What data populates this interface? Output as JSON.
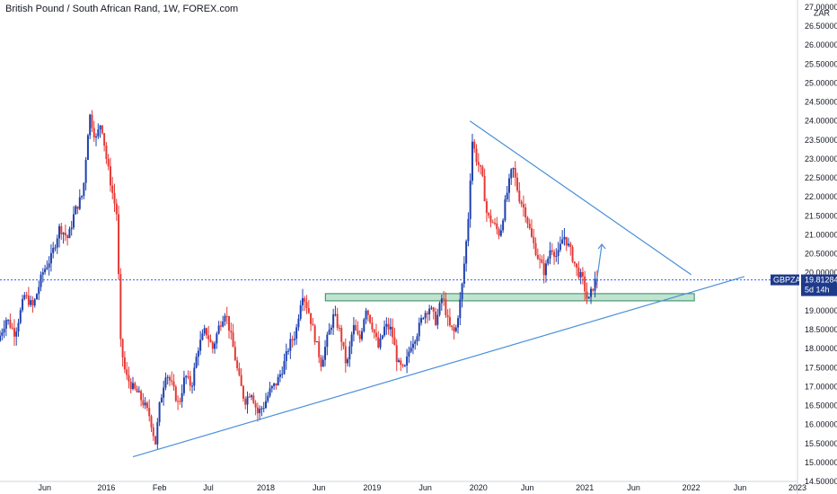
{
  "header": {
    "title": "British Pound / South African Rand, 1W, FOREX.com"
  },
  "chart_data": {
    "type": "candlestick",
    "symbol": "GBPZAR",
    "currency_label": "ZAR",
    "last_price": "19.81284",
    "countdown": "5d 14h",
    "ylim": [
      14.5,
      27.0
    ],
    "y_ticks": [
      "14.50000",
      "15.00000",
      "15.50000",
      "16.00000",
      "16.50000",
      "17.00000",
      "17.50000",
      "18.00000",
      "18.50000",
      "19.00000",
      "19.50000",
      "20.00000",
      "20.50000",
      "21.00000",
      "21.50000",
      "22.00000",
      "22.50000",
      "23.00000",
      "23.50000",
      "24.00000",
      "24.50000",
      "25.00000",
      "25.50000",
      "26.00000",
      "26.50000",
      "27.00000"
    ],
    "x_ticks": [
      {
        "label": "Jun",
        "t": 2015.42
      },
      {
        "label": "2016",
        "t": 2016.0
      },
      {
        "label": "Feb",
        "t": 2016.5
      },
      {
        "label": "Jul",
        "t": 2016.96
      },
      {
        "label": "2018",
        "t": 2017.5
      },
      {
        "label": "Jun",
        "t": 2018.0
      },
      {
        "label": "2019",
        "t": 2018.5
      },
      {
        "label": "Jun",
        "t": 2019.0
      },
      {
        "label": "2020",
        "t": 2019.5
      },
      {
        "label": "Jun",
        "t": 2019.96
      },
      {
        "label": "2021",
        "t": 2020.5
      },
      {
        "label": "Jun",
        "t": 2020.96
      },
      {
        "label": "2022",
        "t": 2021.5
      },
      {
        "label": "Jun",
        "t": 2021.96
      },
      {
        "label": "2023",
        "t": 2022.5
      }
    ],
    "xlim": [
      2015.0,
      2022.5
    ],
    "price_path": [
      [
        2015.0,
        18.2
      ],
      [
        2015.08,
        18.8
      ],
      [
        2015.16,
        18.4
      ],
      [
        2015.25,
        19.4
      ],
      [
        2015.33,
        19.1
      ],
      [
        2015.42,
        20.0
      ],
      [
        2015.5,
        20.4
      ],
      [
        2015.58,
        21.2
      ],
      [
        2015.66,
        20.9
      ],
      [
        2015.72,
        21.6
      ],
      [
        2015.8,
        22.1
      ],
      [
        2015.86,
        24.2
      ],
      [
        2015.92,
        23.5
      ],
      [
        2015.97,
        24.0
      ],
      [
        2016.02,
        23.0
      ],
      [
        2016.07,
        22.2
      ],
      [
        2016.12,
        21.5
      ],
      [
        2016.15,
        18.2
      ],
      [
        2016.2,
        17.3
      ],
      [
        2016.26,
        17.0
      ],
      [
        2016.32,
        16.8
      ],
      [
        2016.38,
        16.5
      ],
      [
        2016.43,
        16.2
      ],
      [
        2016.48,
        15.5
      ],
      [
        2016.52,
        16.5
      ],
      [
        2016.58,
        17.4
      ],
      [
        2016.64,
        17.0
      ],
      [
        2016.7,
        16.5
      ],
      [
        2016.76,
        17.3
      ],
      [
        2016.82,
        17.0
      ],
      [
        2016.88,
        18.0
      ],
      [
        2016.95,
        18.5
      ],
      [
        2017.02,
        18.0
      ],
      [
        2017.08,
        18.6
      ],
      [
        2017.14,
        19.0
      ],
      [
        2017.2,
        18.2
      ],
      [
        2017.26,
        17.3
      ],
      [
        2017.32,
        16.6
      ],
      [
        2017.38,
        16.9
      ],
      [
        2017.44,
        16.3
      ],
      [
        2017.5,
        16.5
      ],
      [
        2017.56,
        16.9
      ],
      [
        2017.62,
        17.1
      ],
      [
        2017.68,
        17.5
      ],
      [
        2017.74,
        18.1
      ],
      [
        2017.8,
        18.4
      ],
      [
        2017.86,
        19.5
      ],
      [
        2017.92,
        19.0
      ],
      [
        2017.98,
        18.3
      ],
      [
        2018.04,
        17.6
      ],
      [
        2018.1,
        18.3
      ],
      [
        2018.16,
        18.9
      ],
      [
        2018.22,
        18.4
      ],
      [
        2018.28,
        17.5
      ],
      [
        2018.34,
        18.6
      ],
      [
        2018.4,
        18.2
      ],
      [
        2018.46,
        19.1
      ],
      [
        2018.52,
        18.6
      ],
      [
        2018.58,
        18.0
      ],
      [
        2018.64,
        18.6
      ],
      [
        2018.7,
        18.5
      ],
      [
        2018.76,
        17.6
      ],
      [
        2018.82,
        17.4
      ],
      [
        2018.88,
        18.1
      ],
      [
        2018.94,
        18.4
      ],
      [
        2019.0,
        18.9
      ],
      [
        2019.06,
        19.1
      ],
      [
        2019.12,
        18.7
      ],
      [
        2019.18,
        19.4
      ],
      [
        2019.24,
        18.6
      ],
      [
        2019.3,
        18.4
      ],
      [
        2019.36,
        19.5
      ],
      [
        2019.42,
        21.3
      ],
      [
        2019.46,
        23.5
      ],
      [
        2019.5,
        23.0
      ],
      [
        2019.55,
        22.6
      ],
      [
        2019.6,
        21.5
      ],
      [
        2019.66,
        21.3
      ],
      [
        2019.72,
        21.0
      ],
      [
        2019.78,
        22.0
      ],
      [
        2019.84,
        22.8
      ],
      [
        2019.9,
        22.0
      ],
      [
        2019.96,
        21.6
      ],
      [
        2020.02,
        20.9
      ],
      [
        2020.08,
        20.4
      ],
      [
        2020.14,
        20.0
      ],
      [
        2020.2,
        20.7
      ],
      [
        2020.26,
        20.4
      ],
      [
        2020.32,
        21.0
      ],
      [
        2020.38,
        20.6
      ],
      [
        2020.44,
        20.1
      ],
      [
        2020.5,
        19.8
      ],
      [
        2020.55,
        19.2
      ],
      [
        2020.58,
        19.5
      ],
      [
        2020.62,
        19.81
      ]
    ],
    "annotations": {
      "support_zone": {
        "t0": 2018.06,
        "t1": 2021.53,
        "y0": 19.26,
        "y1": 19.45
      },
      "ascending_trendline": {
        "p1": [
          2016.25,
          15.15
        ],
        "p2": [
          2022.0,
          19.9
        ]
      },
      "descending_trendline": {
        "p1": [
          2019.42,
          24.0
        ],
        "p2": [
          2021.5,
          19.95
        ]
      },
      "projection_arrow": {
        "p1": [
          2020.6,
          19.55
        ],
        "p2": [
          2020.66,
          20.75
        ]
      }
    }
  }
}
